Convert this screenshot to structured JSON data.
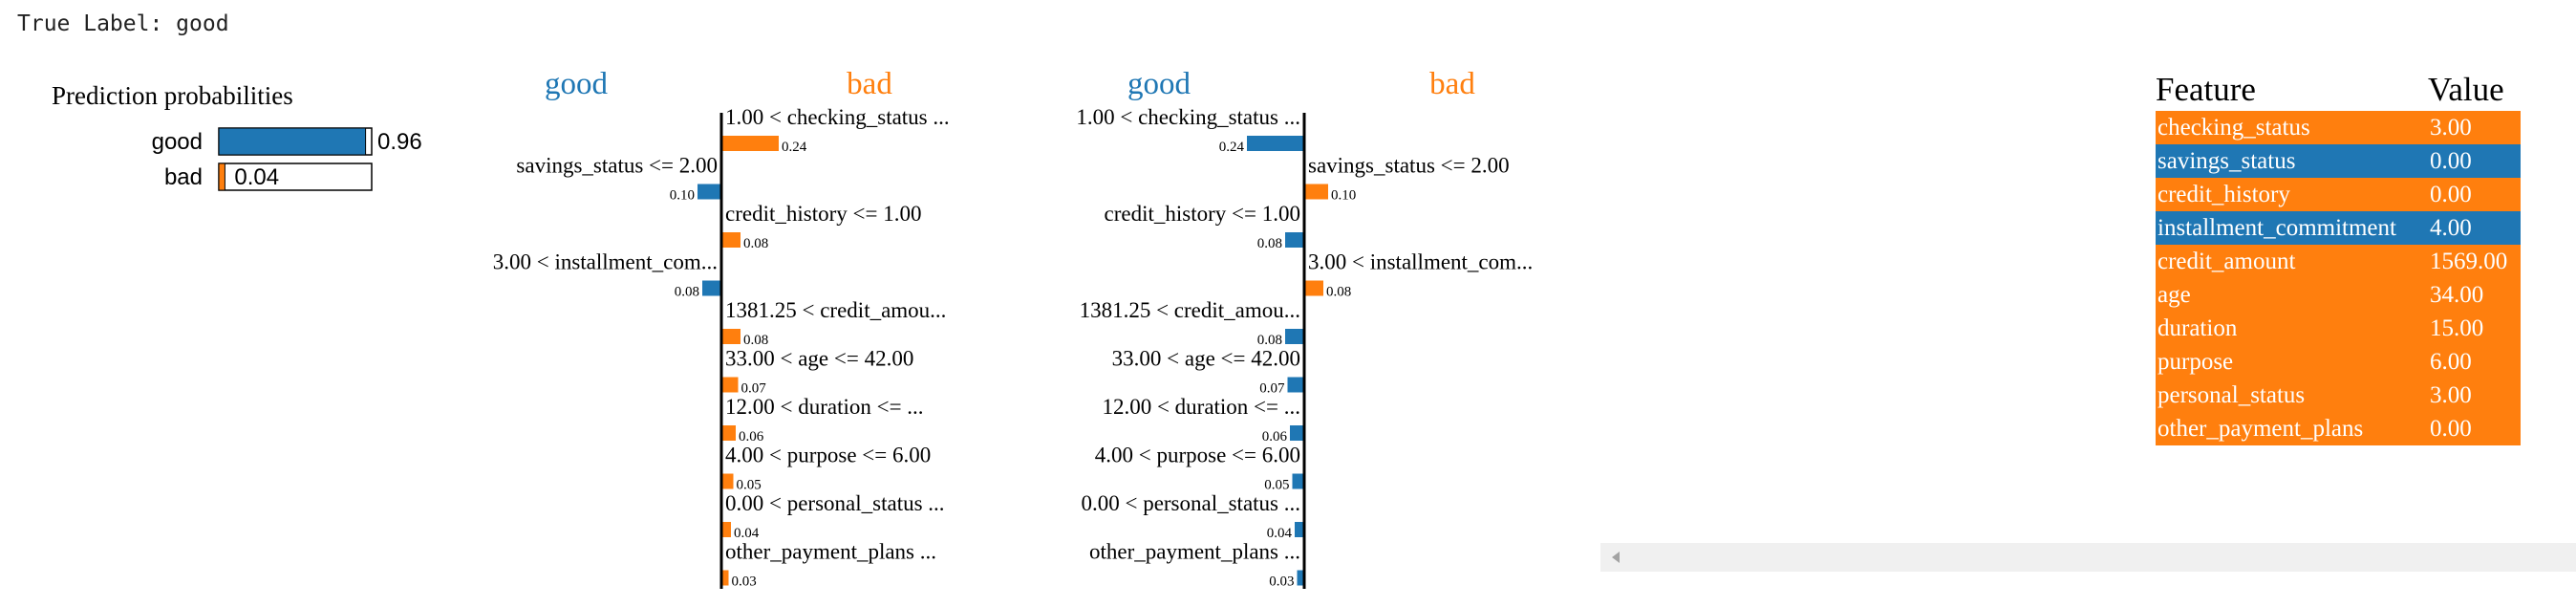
{
  "true_label": "True Label: good",
  "colors": {
    "good": "#1f77b4",
    "bad": "#ff7f0e"
  },
  "chart_data": [
    {
      "type": "bar",
      "title": "Prediction probabilities",
      "categories": [
        "good",
        "bad"
      ],
      "values": [
        0.96,
        0.04
      ],
      "value_labels": [
        "0.96",
        "0.04"
      ],
      "xlim": [
        0,
        1
      ]
    },
    {
      "type": "bar",
      "orientation": "horizontal",
      "class_labels": [
        "good",
        "bad"
      ],
      "features": [
        {
          "label": "1.00 < checking_status ...",
          "weight": 0.24,
          "weight_label": "0.24",
          "class": "bad"
        },
        {
          "label": "savings_status <= 2.00",
          "weight": 0.1,
          "weight_label": "0.10",
          "class": "good"
        },
        {
          "label": "credit_history <= 1.00",
          "weight": 0.08,
          "weight_label": "0.08",
          "class": "bad"
        },
        {
          "label": "3.00 < installment_com...",
          "weight": 0.08,
          "weight_label": "0.08",
          "class": "good"
        },
        {
          "label": "1381.25 < credit_amou...",
          "weight": 0.08,
          "weight_label": "0.08",
          "class": "bad"
        },
        {
          "label": "33.00 < age <= 42.00",
          "weight": 0.07,
          "weight_label": "0.07",
          "class": "bad"
        },
        {
          "label": "12.00 < duration <= ...",
          "weight": 0.06,
          "weight_label": "0.06",
          "class": "bad"
        },
        {
          "label": "4.00 < purpose <= 6.00",
          "weight": 0.05,
          "weight_label": "0.05",
          "class": "bad"
        },
        {
          "label": "0.00 < personal_status ...",
          "weight": 0.04,
          "weight_label": "0.04",
          "class": "bad"
        },
        {
          "label": "other_payment_plans ...",
          "weight": 0.03,
          "weight_label": "0.03",
          "class": "bad"
        }
      ]
    },
    {
      "type": "bar",
      "orientation": "horizontal",
      "class_labels": [
        "good",
        "bad"
      ],
      "features": [
        {
          "label": "1.00 < checking_status ...",
          "weight": 0.24,
          "weight_label": "0.24",
          "class": "good"
        },
        {
          "label": "savings_status <= 2.00",
          "weight": 0.1,
          "weight_label": "0.10",
          "class": "bad"
        },
        {
          "label": "credit_history <= 1.00",
          "weight": 0.08,
          "weight_label": "0.08",
          "class": "good"
        },
        {
          "label": "3.00 < installment_com...",
          "weight": 0.08,
          "weight_label": "0.08",
          "class": "bad"
        },
        {
          "label": "1381.25 < credit_amou...",
          "weight": 0.08,
          "weight_label": "0.08",
          "class": "good"
        },
        {
          "label": "33.00 < age <= 42.00",
          "weight": 0.07,
          "weight_label": "0.07",
          "class": "good"
        },
        {
          "label": "12.00 < duration <= ...",
          "weight": 0.06,
          "weight_label": "0.06",
          "class": "good"
        },
        {
          "label": "4.00 < purpose <= 6.00",
          "weight": 0.05,
          "weight_label": "0.05",
          "class": "good"
        },
        {
          "label": "0.00 < personal_status ...",
          "weight": 0.04,
          "weight_label": "0.04",
          "class": "good"
        },
        {
          "label": "other_payment_plans ...",
          "weight": 0.03,
          "weight_label": "0.03",
          "class": "good"
        }
      ]
    },
    {
      "type": "table",
      "columns": [
        "Feature",
        "Value"
      ],
      "rows": [
        {
          "feature": "checking_status",
          "value": "3.00",
          "class": "bad"
        },
        {
          "feature": "savings_status",
          "value": "0.00",
          "class": "good"
        },
        {
          "feature": "credit_history",
          "value": "0.00",
          "class": "bad"
        },
        {
          "feature": "installment_commitment",
          "value": "4.00",
          "class": "good"
        },
        {
          "feature": "credit_amount",
          "value": "1569.00",
          "class": "bad"
        },
        {
          "feature": "age",
          "value": "34.00",
          "class": "bad"
        },
        {
          "feature": "duration",
          "value": "15.00",
          "class": "bad"
        },
        {
          "feature": "purpose",
          "value": "6.00",
          "class": "bad"
        },
        {
          "feature": "personal_status",
          "value": "3.00",
          "class": "bad"
        },
        {
          "feature": "other_payment_plans",
          "value": "0.00",
          "class": "bad"
        }
      ]
    }
  ],
  "scrollbar": {
    "icon": "chevron-left-icon"
  }
}
